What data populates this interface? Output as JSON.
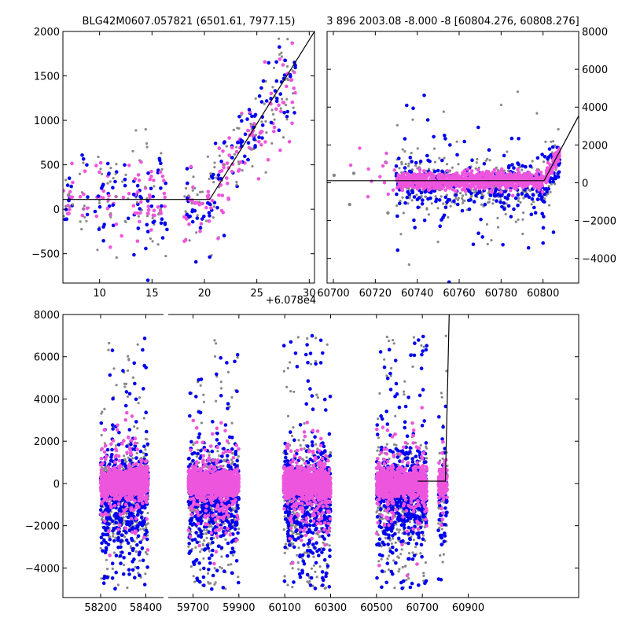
{
  "colors": {
    "grey": "#888888",
    "blue": "#0000ee",
    "pink": "#ee55dd",
    "line": "#000000"
  },
  "chart_data": [
    {
      "id": "top_left",
      "type": "scatter",
      "title": "BLG42M0607.057821 (6501.61, 7977.15)",
      "offset_text": "+6.078e4",
      "xlim": [
        6.5,
        30.5
      ],
      "ylim": [
        -830,
        2000
      ],
      "xticks": [
        10,
        15,
        20,
        25,
        30
      ],
      "yticks": [
        -500,
        0,
        500,
        1000,
        1500,
        2000
      ],
      "ytick_labels": [
        "−500",
        "0",
        "500",
        "1000",
        "1500",
        "2000"
      ],
      "model_line": [
        [
          6.5,
          110
        ],
        [
          20.5,
          110
        ],
        [
          30.5,
          2000
        ]
      ],
      "note": "x values are offsets from 60780"
    },
    {
      "id": "top_right",
      "type": "scatter",
      "title": "3 896 2003.08 -8.000 -8 [60804.276, 60808.276]",
      "xlim": [
        60697,
        60817
      ],
      "ylim": [
        -5300,
        8000
      ],
      "xticks": [
        60700,
        60720,
        60740,
        60760,
        60780,
        60800
      ],
      "yticks": [
        -4000,
        -2000,
        0,
        2000,
        4000,
        6000,
        8000
      ],
      "ytick_labels": [
        "−4000",
        "−2000",
        "0",
        "2000",
        "4000",
        "6000",
        "8000"
      ],
      "y_axis_side": "right",
      "model_line": [
        [
          60697,
          110
        ],
        [
          60800.5,
          110
        ],
        [
          60817,
          3540
        ]
      ]
    },
    {
      "id": "bottom",
      "type": "scatter",
      "xlim": [
        58160,
        61060
      ],
      "ylim": [
        -5400,
        8000
      ],
      "xticks": [
        58200,
        58400,
        59700,
        59900,
        60100,
        60300,
        60500,
        60700,
        60900
      ],
      "yticks": [
        -4000,
        -2000,
        0,
        2000,
        4000,
        6000,
        8000
      ],
      "ytick_labels": [
        "−4000",
        "−2000",
        "0",
        "2000",
        "4000",
        "6000",
        "8000"
      ],
      "x_axis_break": "between 58400 and 59700",
      "model_line": [
        [
          60680,
          110
        ],
        [
          60800.5,
          110
        ],
        [
          60817,
          8000
        ]
      ],
      "seasons": [
        [
          58200,
          58410
        ],
        [
          59680,
          59900
        ],
        [
          60095,
          60300
        ],
        [
          60500,
          60720
        ],
        [
          60770,
          60810
        ]
      ]
    }
  ]
}
